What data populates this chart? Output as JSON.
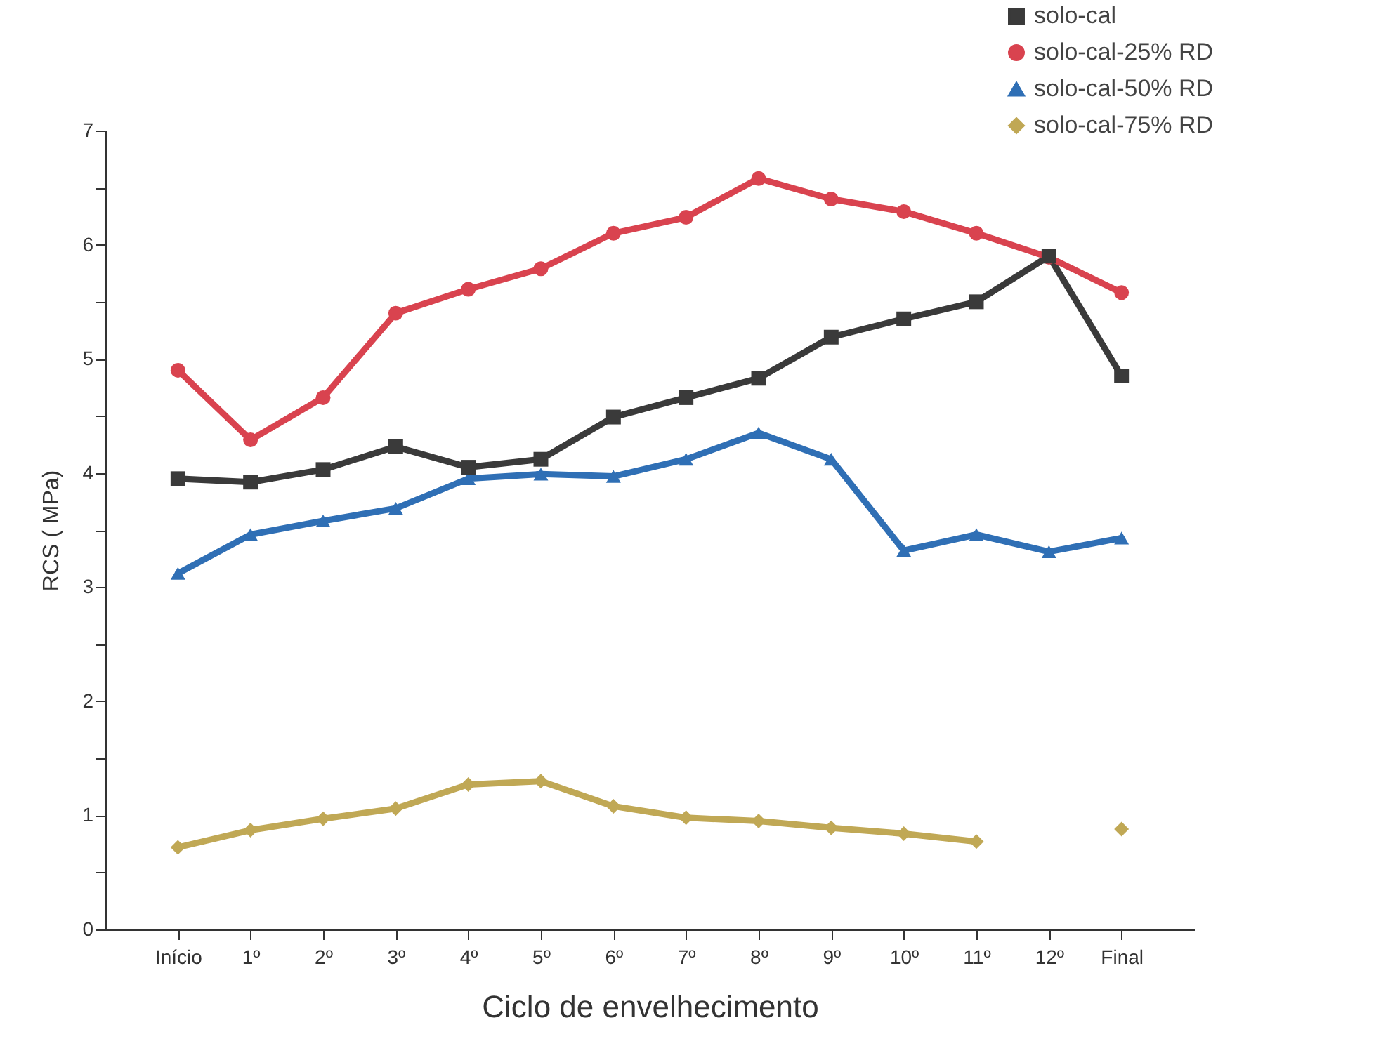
{
  "chart_data": {
    "type": "line",
    "xlabel": "Ciclo de envelhecimento",
    "ylabel": "RCS ( MPa)",
    "categories": [
      "Início",
      "1º",
      "2º",
      "3º",
      "4º",
      "5º",
      "6º",
      "7º",
      "8º",
      "9º",
      "10º",
      "11º",
      "12º",
      "Final"
    ],
    "ylim": [
      0,
      7
    ],
    "yticks": [
      0,
      {
        "value": 0.5,
        "label": null
      },
      1,
      {
        "value": 1.5,
        "label": null
      },
      2,
      {
        "value": 2.5,
        "label": null
      },
      3,
      {
        "value": 3.5,
        "label": null
      },
      4,
      {
        "value": 4.5,
        "label": null
      },
      5,
      {
        "value": 5.5,
        "label": null
      },
      6,
      {
        "value": 6.5,
        "label": null
      },
      7
    ],
    "legend": "top right",
    "grid": false,
    "line_style": "solid",
    "series": [
      {
        "name": "solo-cal",
        "color": "#3a3a3a",
        "marker": "square",
        "values": [
          3.95,
          3.92,
          4.03,
          4.23,
          4.05,
          4.12,
          4.49,
          4.66,
          4.83,
          5.19,
          5.35,
          5.5,
          5.9,
          4.85
        ]
      },
      {
        "name": "solo-cal-25% RD",
        "color": "#d9434f",
        "marker": "circle",
        "values": [
          4.9,
          4.29,
          4.66,
          5.4,
          5.61,
          5.79,
          6.1,
          6.24,
          6.58,
          6.4,
          6.29,
          6.1,
          5.89,
          5.58
        ]
      },
      {
        "name": "solo-cal-50% RD",
        "color": "#2f6fb5",
        "marker": "triangle",
        "values": [
          3.12,
          3.46,
          3.58,
          3.69,
          3.95,
          3.99,
          3.97,
          4.12,
          4.35,
          4.12,
          3.32,
          3.46,
          3.31,
          3.43
        ]
      },
      {
        "name": "solo-cal-75% RD",
        "color": "#c0a855",
        "marker": "diamond",
        "values": [
          0.72,
          0.87,
          0.97,
          1.06,
          1.27,
          1.3,
          1.08,
          0.98,
          0.95,
          0.89,
          0.84,
          0.77,
          null,
          0.88
        ]
      }
    ]
  }
}
